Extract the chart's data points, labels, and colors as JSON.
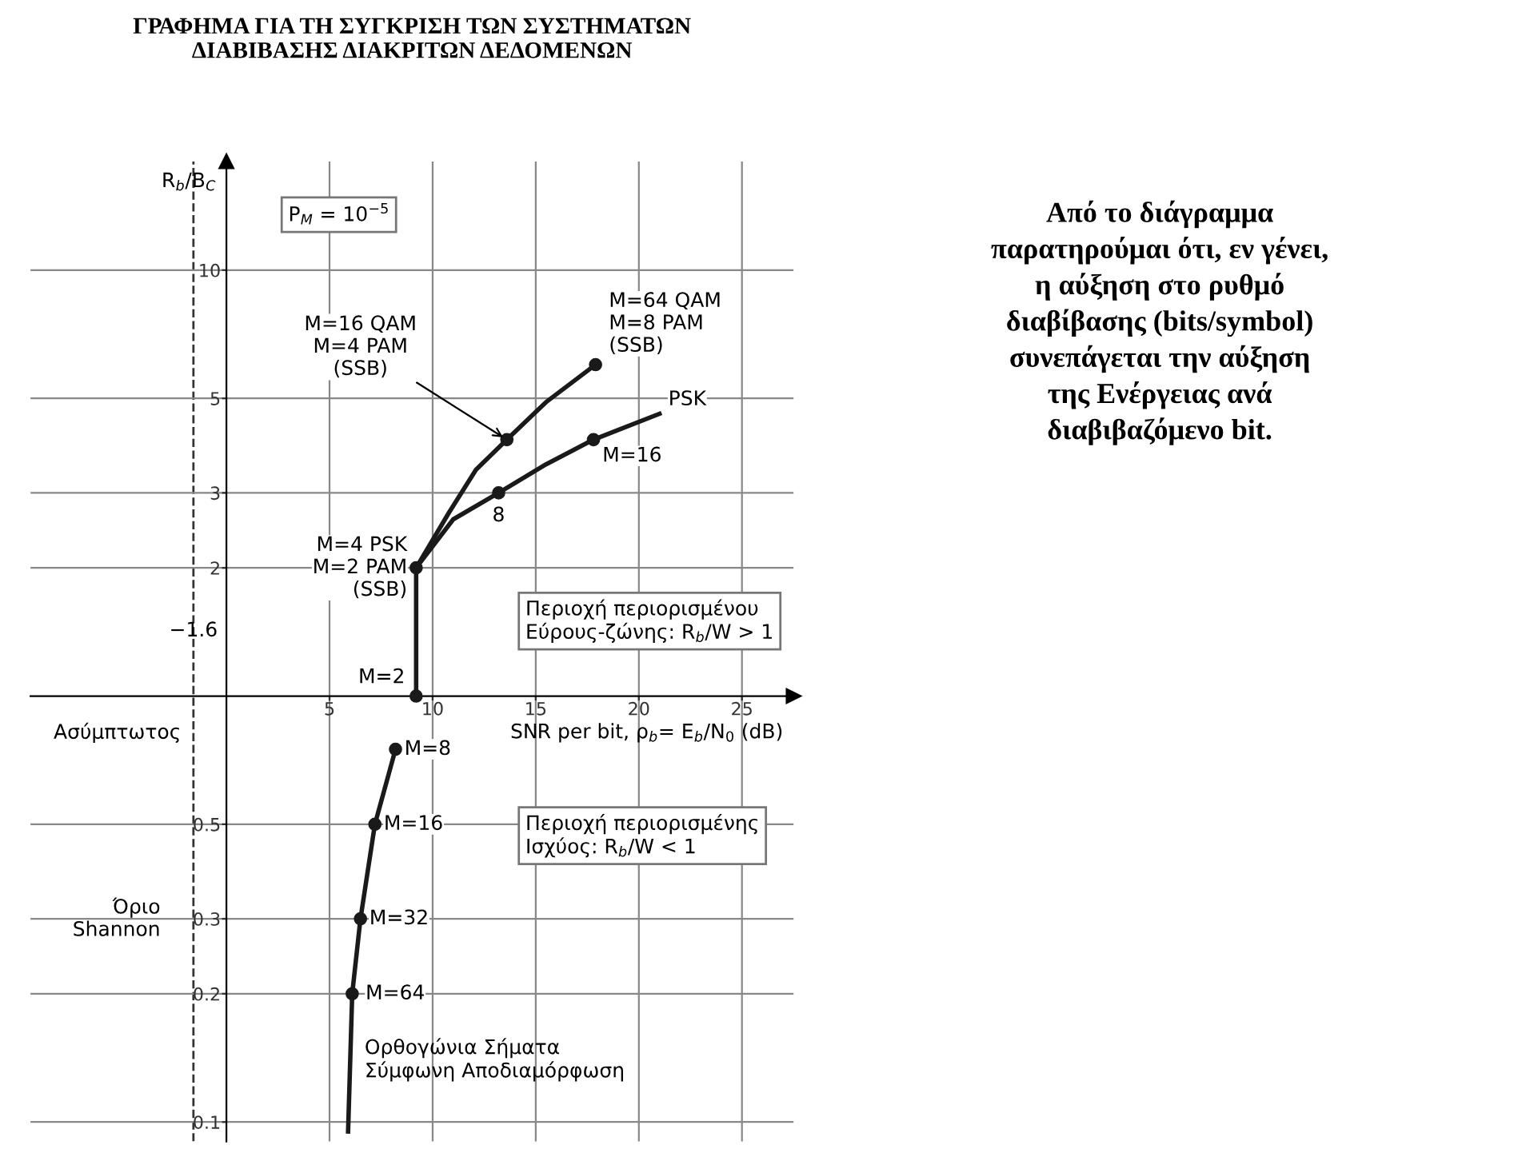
{
  "chart_data": {
    "type": "line",
    "title": "ΓΡΑΦΗΜΑ ΓΙΑ ΤΗ ΣΥΓΚΡΙΣΗ ΤΩΝ ΣΥΣΤΗΜΑΤΩΝ\nΔΙΑΒΙΒΑΣΗΣ ΔΙΑΚΡΙΤΩΝ ΔΕΔΟΜΕΝΩΝ",
    "xlabel": "SNR per bit, ρ$_{b}$= E$_{b}$/N$_{0}$ (dB)",
    "ylabel": "R$_{b}$/B$_{C}$",
    "log": "y",
    "xlim": [
      -9.5,
      27.5
    ],
    "ylim": [
      0.09,
      18
    ],
    "xticks": [
      5,
      10,
      15,
      20,
      25
    ],
    "yticks": [
      0.1,
      0.2,
      0.3,
      0.5,
      2,
      3,
      5,
      10
    ],
    "grid": true,
    "series": [
      {
        "color": "#1a1a1a",
        "x": [
          9.2,
          9.2,
          10.8,
          12.1,
          13.6,
          15.5,
          17.9
        ],
        "values": [
          1,
          2,
          2.7,
          3.4,
          4,
          4.9,
          6
        ]
      },
      {
        "color": "#1a1a1a",
        "x": [
          9.2,
          11,
          13.2,
          15.5,
          17.8,
          21
        ],
        "values": [
          2,
          2.6,
          3,
          3.5,
          4,
          4.6
        ]
      },
      {
        "color": "#1a1a1a",
        "x": [
          8.2,
          7.2,
          6.5,
          6.1,
          5.9
        ],
        "values": [
          0.75,
          0.5,
          0.3,
          0.2,
          0.095
        ]
      },
      {
        "type": "scatter",
        "color": "#1a1a1a",
        "marker": "circle",
        "x": [
          9.2,
          9.2,
          13.2,
          17.8,
          13.6,
          17.9,
          8.2,
          7.2,
          6.5,
          6.1
        ],
        "values": [
          1,
          2,
          3,
          4,
          4,
          6,
          0.75,
          0.5,
          0.3,
          0.2
        ]
      }
    ],
    "ref_lines": [
      {
        "axis": "x",
        "value": -1.6,
        "label": "−1.6",
        "line_style": "dashed",
        "color": "#333333"
      }
    ],
    "annotations": [
      {
        "text": "M=2",
        "x": 9.2,
        "y": 1
      },
      {
        "text": "M=4 PSK\nM=2 PAM\n(SSB)",
        "x": 9.2,
        "y": 2
      },
      {
        "text": "8",
        "x": 13.2,
        "y": 3
      },
      {
        "text": "M=16",
        "x": 17.8,
        "y": 4
      },
      {
        "text": "PSK",
        "x": 21,
        "y": 4.6
      },
      {
        "text": "M=16 QAM\nM=4 PAM\n(SSB)",
        "x": 13.6,
        "y": 4
      },
      {
        "text": "M=64 QAM\nM=8 PAM\n(SSB)",
        "x": 17.9,
        "y": 6
      },
      {
        "text": "M=8",
        "x": 8.2,
        "y": 0.75
      },
      {
        "text": "M=16",
        "x": 7.2,
        "y": 0.5
      },
      {
        "text": "M=32",
        "x": 6.5,
        "y": 0.3
      },
      {
        "text": "M=64",
        "x": 6.1,
        "y": 0.2
      },
      "P$_{M}$ = 10$^{−5}$",
      "Περιοχή περιορισμένου\nΕύρους-ζώνης: R$_{b}$/W > 1",
      "Περιοχή περιορισμένης\nΙσχύος: R$_{b}$/W < 1",
      "Ορθογώνια Σήματα\nΣύμφωνη Αποδιαμόρφωση",
      "Ασύμπτωτος",
      "Όριο\nShannon",
      "Από το διάγραμμα\nπαρατηρούμαι ότι, εν γένει,\nη αύξηση στο ρυθμό\nδιαβίβασης (bits/symbol)\nσυνεπάγεται την αύξηση\nτης Ενέργειας ανά\nδιαβιβαζόμενο bit."
    ]
  }
}
